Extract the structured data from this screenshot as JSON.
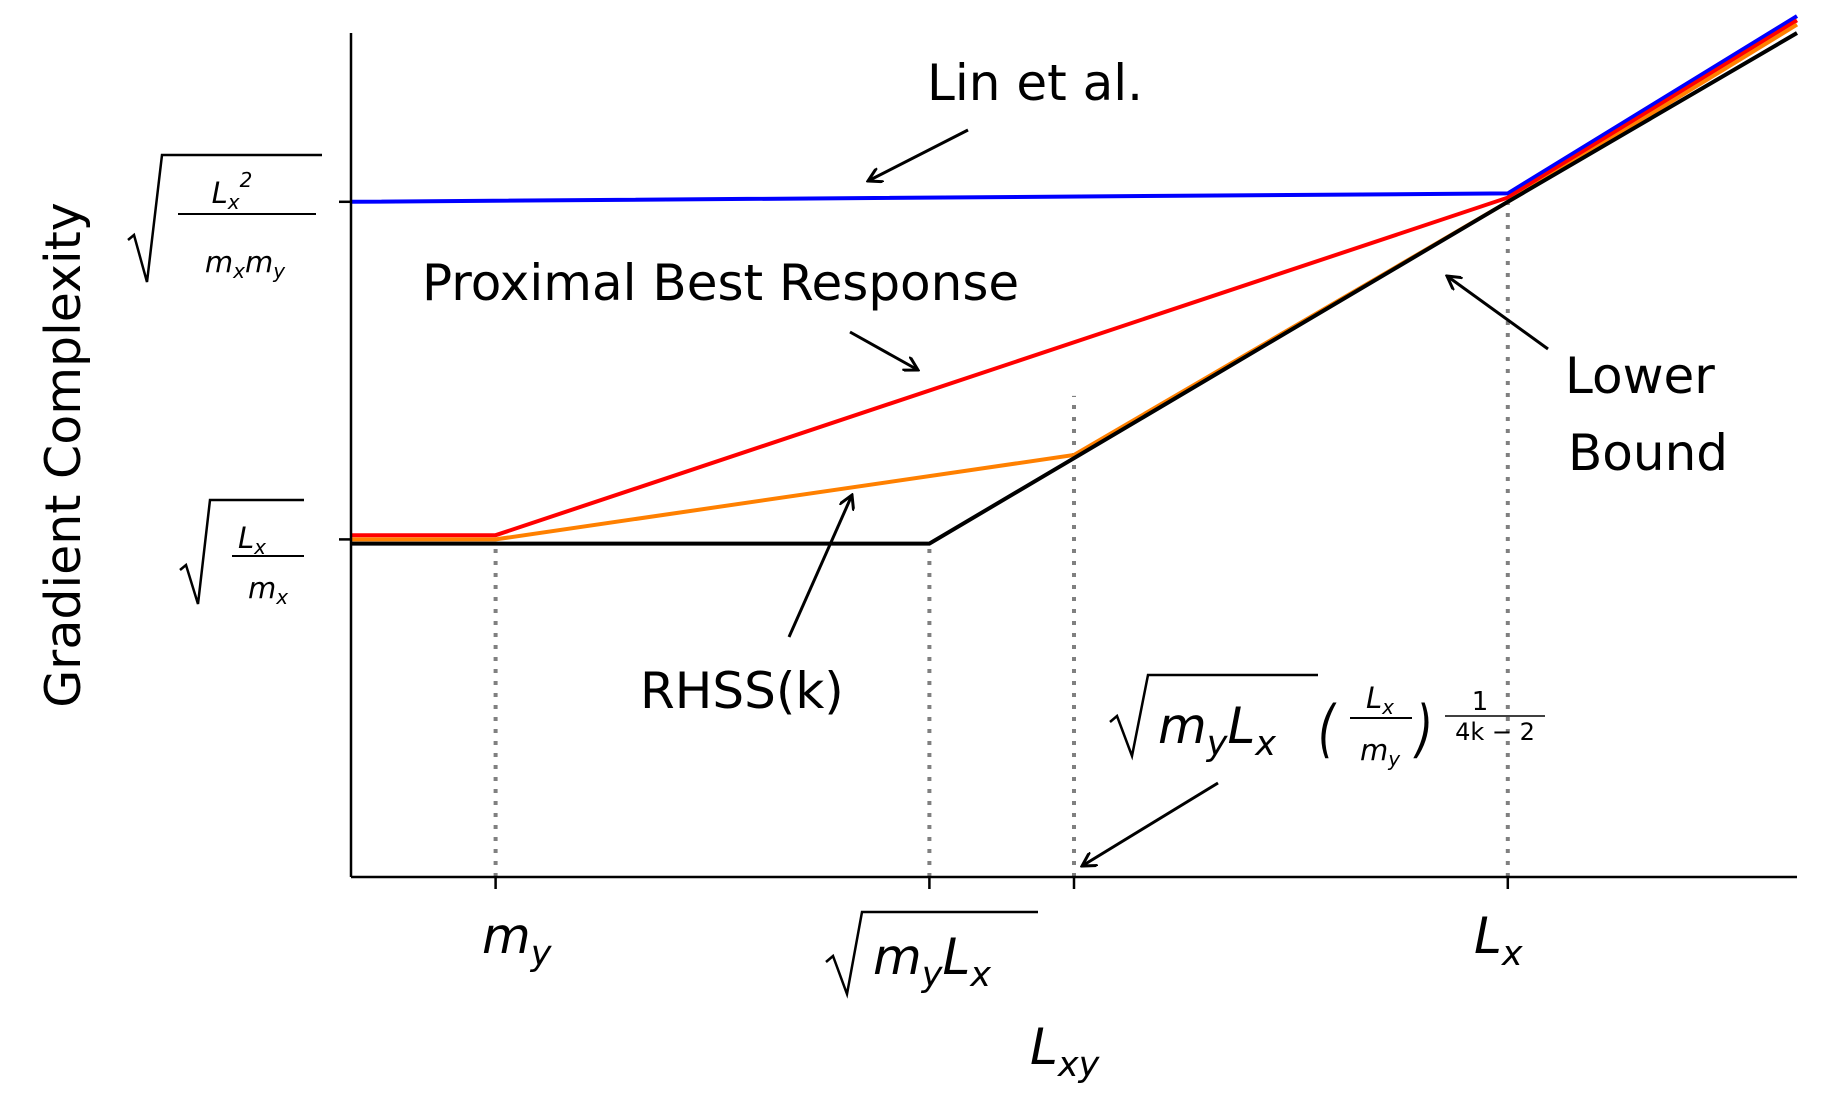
{
  "chart_data": {
    "type": "line",
    "ylabel": "Gradient Complexity",
    "xlabel": "L",
    "xlabel_sub": "xy",
    "xlim": [
      0,
      10
    ],
    "ylim": [
      0,
      10
    ],
    "x_ticks": [
      {
        "x": 1.0,
        "label": "m_y"
      },
      {
        "x": 4.0,
        "label": "sqrt(m_y L_x)"
      },
      {
        "x": 5.0,
        "label": ""
      },
      {
        "x": 8.0,
        "label": "L_x"
      }
    ],
    "y_ticks": [
      {
        "y": 4.0,
        "label": "sqrt(L_x / m_x)"
      },
      {
        "y": 8.0,
        "label": "sqrt(L_x^2 / (m_x m_y))"
      }
    ],
    "series": [
      {
        "name": "Lin et al.",
        "color": "#0000ff",
        "x": [
          0,
          8,
          10
        ],
        "y": [
          8.0,
          8.1,
          10.2
        ]
      },
      {
        "name": "Proximal Best Response",
        "color": "#ff0000",
        "x": [
          0,
          1,
          8,
          10
        ],
        "y": [
          4.05,
          4.05,
          8.05,
          10.15
        ]
      },
      {
        "name": "RHSS(k)",
        "color": "#ff8000",
        "x": [
          0,
          1,
          5,
          8,
          10
        ],
        "y": [
          4.0,
          4.0,
          5.0,
          8.0,
          10.1
        ]
      },
      {
        "name": "Lower Bound",
        "color": "#000000",
        "x": [
          0,
          4,
          8,
          10
        ],
        "y": [
          3.95,
          3.95,
          8.0,
          10.0
        ]
      }
    ],
    "vlines": [
      1.0,
      4.0,
      5.0,
      8.0
    ],
    "annotations": {
      "lin": "Lin et al.",
      "pbr": "Proximal Best Response",
      "lower1": "Lower",
      "lower2": "Bound",
      "rhss": "RHSS(k)",
      "kink_expr": "sqrt(m_y L_x) (L_x/m_y)^(1/(4k-2))"
    }
  }
}
